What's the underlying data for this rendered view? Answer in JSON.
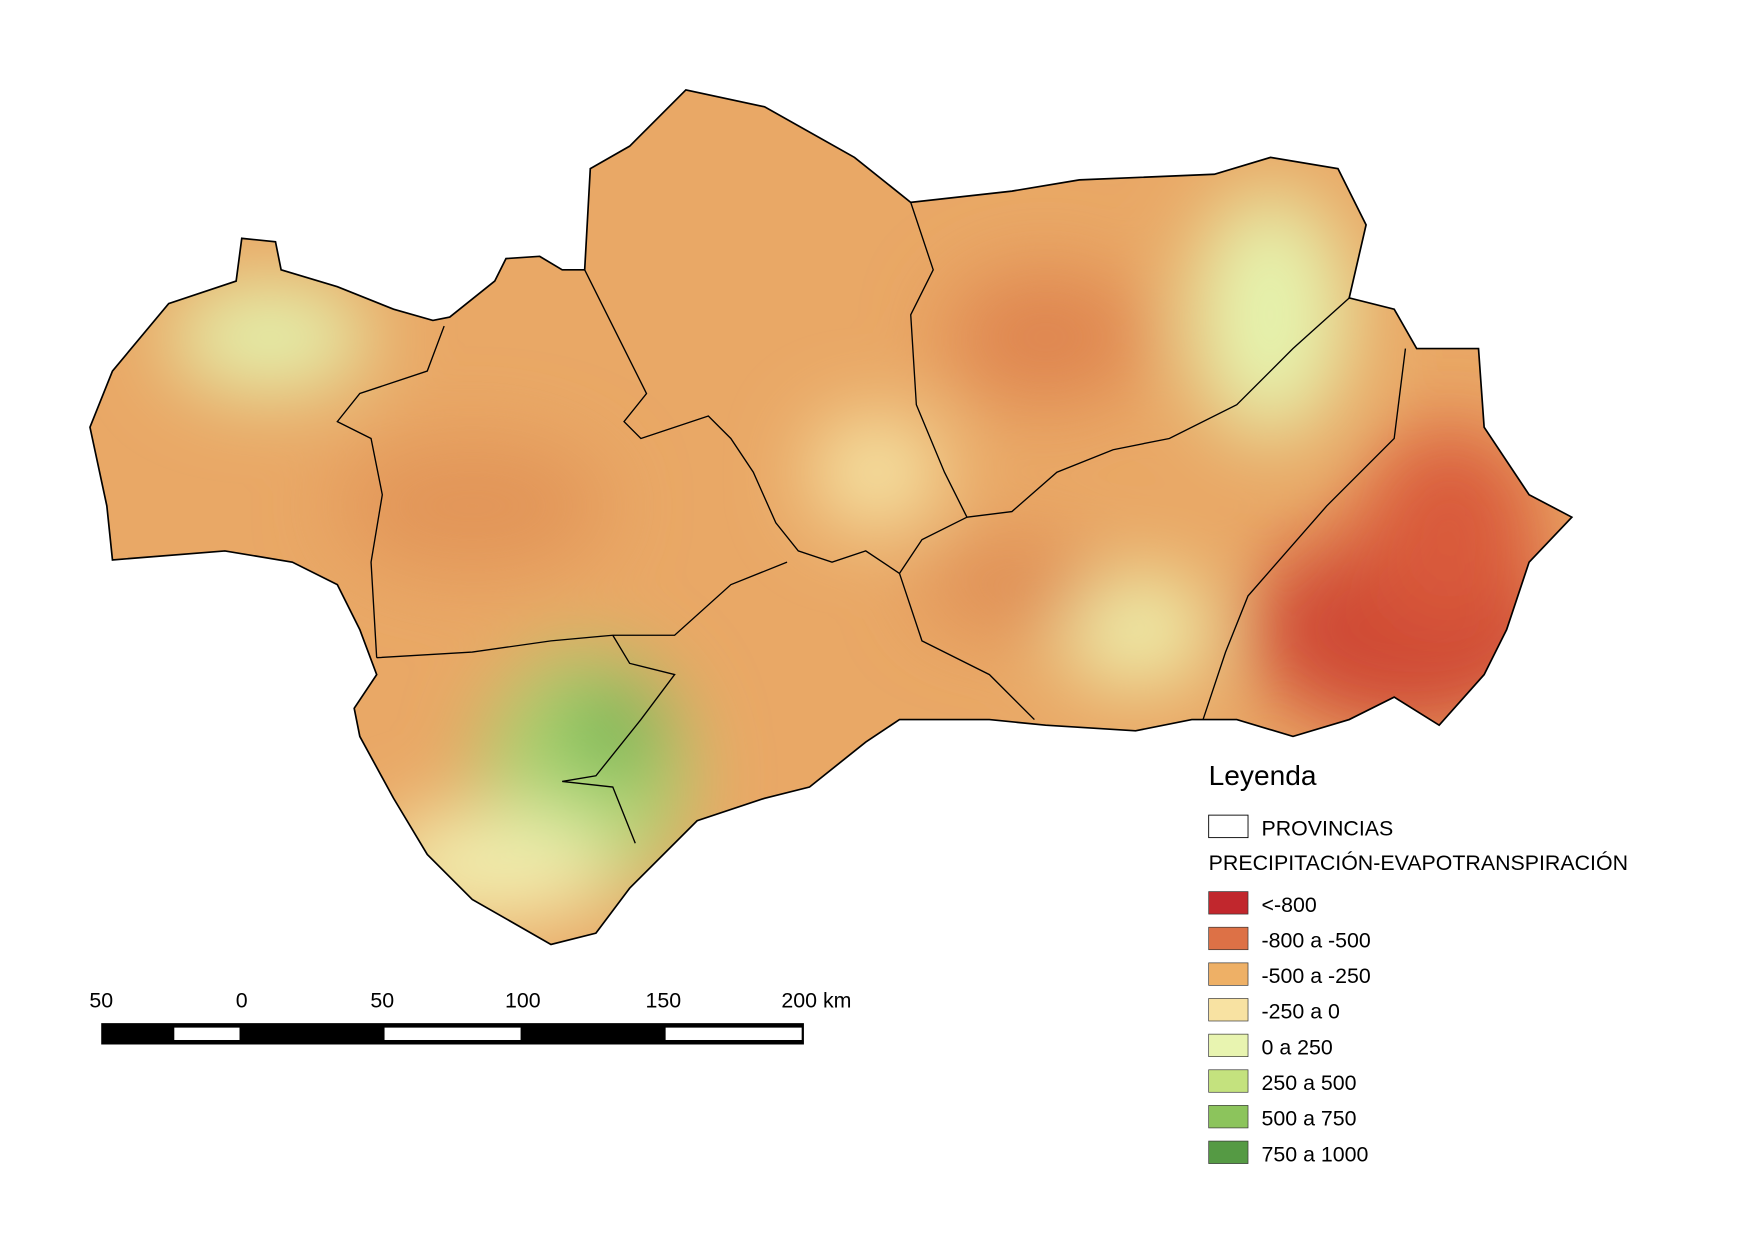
{
  "legend": {
    "title": "Leyenda",
    "layer": "PROVINCIAS",
    "raster": "PRECIPITACIÓN-EVAPOTRANSPIRACIÓN",
    "items": [
      {
        "label": "<-800",
        "color": "#c1272d"
      },
      {
        "label": "-800 a -500",
        "color": "#dd7146"
      },
      {
        "label": "-500 a -250",
        "color": "#eeb066"
      },
      {
        "label": "-250 a 0",
        "color": "#f8e2a2"
      },
      {
        "label": "0 a 250",
        "color": "#e8f4b0"
      },
      {
        "label": "250 a 500",
        "color": "#c4e27e"
      },
      {
        "label": "500 a 750",
        "color": "#8cc45c"
      },
      {
        "label": "750 a 1000",
        "color": "#559a44"
      }
    ]
  },
  "scale_bar": {
    "labels": [
      "50",
      "0",
      "50",
      "100",
      "150",
      "200 km"
    ]
  }
}
